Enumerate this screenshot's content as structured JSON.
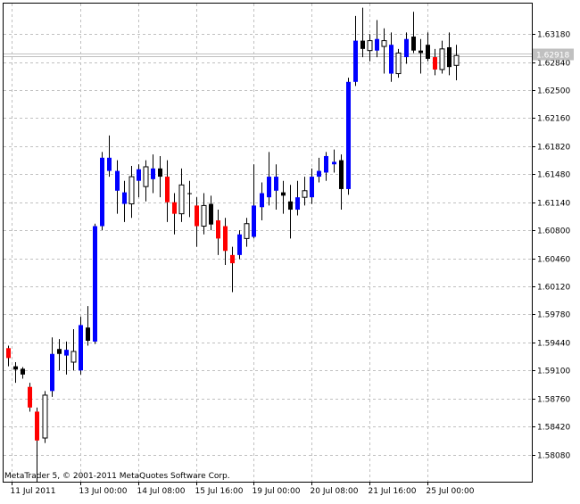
{
  "chart_data": {
    "type": "candlestick",
    "copyright": "MetaTrader 5, © 2001-2011 MetaQuotes Software Corp.",
    "current_price_label": "1.62918",
    "current_price": 1.62918,
    "ylim": [
      1.5775,
      1.6355
    ],
    "y_ticks": [
      "1.63180",
      "1.62840",
      "1.62500",
      "1.62160",
      "1.61820",
      "1.61480",
      "1.61140",
      "1.60800",
      "1.60460",
      "1.60120",
      "1.59780",
      "1.59440",
      "1.59100",
      "1.58760",
      "1.58420",
      "1.58080"
    ],
    "x_ticks": [
      {
        "label": "11 Jul 2011",
        "index": 0.5
      },
      {
        "label": "13 Jul 00:00",
        "index": 10
      },
      {
        "label": "14 Jul 08:00",
        "index": 18
      },
      {
        "label": "15 Jul 16:00",
        "index": 26
      },
      {
        "label": "19 Jul 00:00",
        "index": 34
      },
      {
        "label": "20 Jul 08:00",
        "index": 42
      },
      {
        "label": "21 Jul 16:00",
        "index": 50
      },
      {
        "label": "25 Jul 00:00",
        "index": 58
      }
    ],
    "colors": {
      "bull": "#0000ff",
      "bear": "#ff0000",
      "doji_bull": "#ffffff",
      "doji_bear": "#000000",
      "wick": "#000000",
      "grid": "#c0c0c0",
      "price_line": "#c0c0c0",
      "price_tag": "#c0c0c0"
    },
    "candles": [
      {
        "o": 1.5937,
        "h": 1.594,
        "l": 1.5915,
        "c": 1.5925,
        "s": "bear"
      },
      {
        "o": 1.5915,
        "h": 1.592,
        "l": 1.5895,
        "c": 1.5911,
        "s": "dbear"
      },
      {
        "o": 1.5912,
        "h": 1.5914,
        "l": 1.59,
        "c": 1.5905,
        "s": "dbear"
      },
      {
        "o": 1.589,
        "h": 1.5895,
        "l": 1.586,
        "c": 1.5865,
        "s": "bear"
      },
      {
        "o": 1.586,
        "h": 1.5865,
        "l": 1.5775,
        "c": 1.5825,
        "s": "bear"
      },
      {
        "o": 1.5828,
        "h": 1.5885,
        "l": 1.5822,
        "c": 1.588,
        "s": "dbull"
      },
      {
        "o": 1.5885,
        "h": 1.595,
        "l": 1.5878,
        "c": 1.593,
        "s": "bull"
      },
      {
        "o": 1.593,
        "h": 1.5948,
        "l": 1.591,
        "c": 1.5936,
        "s": "dbear"
      },
      {
        "o": 1.5928,
        "h": 1.5945,
        "l": 1.5905,
        "c": 1.5935,
        "s": "bull"
      },
      {
        "o": 1.592,
        "h": 1.596,
        "l": 1.591,
        "c": 1.5933,
        "s": "dbull"
      },
      {
        "o": 1.591,
        "h": 1.5975,
        "l": 1.5905,
        "c": 1.5965,
        "s": "bull"
      },
      {
        "o": 1.5962,
        "h": 1.5988,
        "l": 1.594,
        "c": 1.5946,
        "s": "dbear"
      },
      {
        "o": 1.5945,
        "h": 1.6088,
        "l": 1.5942,
        "c": 1.6085,
        "s": "bull"
      },
      {
        "o": 1.6085,
        "h": 1.6175,
        "l": 1.608,
        "c": 1.6168,
        "s": "bull"
      },
      {
        "o": 1.6168,
        "h": 1.6195,
        "l": 1.6145,
        "c": 1.6152,
        "s": "bull"
      },
      {
        "o": 1.6152,
        "h": 1.6165,
        "l": 1.61,
        "c": 1.6128,
        "s": "bull"
      },
      {
        "o": 1.6126,
        "h": 1.614,
        "l": 1.609,
        "c": 1.6112,
        "s": "bull"
      },
      {
        "o": 1.6112,
        "h": 1.6158,
        "l": 1.6095,
        "c": 1.6145,
        "s": "dbull"
      },
      {
        "o": 1.614,
        "h": 1.616,
        "l": 1.612,
        "c": 1.6154,
        "s": "bull"
      },
      {
        "o": 1.6133,
        "h": 1.6165,
        "l": 1.6115,
        "c": 1.6157,
        "s": "dbull"
      },
      {
        "o": 1.6155,
        "h": 1.6172,
        "l": 1.6125,
        "c": 1.6142,
        "s": "bull"
      },
      {
        "o": 1.6155,
        "h": 1.617,
        "l": 1.612,
        "c": 1.6145,
        "s": "dbear"
      },
      {
        "o": 1.6145,
        "h": 1.6165,
        "l": 1.609,
        "c": 1.6114,
        "s": "bear"
      },
      {
        "o": 1.6114,
        "h": 1.6125,
        "l": 1.6075,
        "c": 1.61,
        "s": "bear"
      },
      {
        "o": 1.61,
        "h": 1.6155,
        "l": 1.609,
        "c": 1.6135,
        "s": "dbull"
      },
      {
        "o": 1.6125,
        "h": 1.614,
        "l": 1.6096,
        "c": 1.6125,
        "s": "dbear"
      },
      {
        "o": 1.611,
        "h": 1.612,
        "l": 1.606,
        "c": 1.6085,
        "s": "bear"
      },
      {
        "o": 1.611,
        "h": 1.6125,
        "l": 1.6075,
        "c": 1.6085,
        "s": "dbull"
      },
      {
        "o": 1.6112,
        "h": 1.6122,
        "l": 1.608,
        "c": 1.6087,
        "s": "dbear"
      },
      {
        "o": 1.6092,
        "h": 1.6105,
        "l": 1.605,
        "c": 1.607,
        "s": "bear"
      },
      {
        "o": 1.6085,
        "h": 1.6095,
        "l": 1.6038,
        "c": 1.6055,
        "s": "bear"
      },
      {
        "o": 1.605,
        "h": 1.606,
        "l": 1.6005,
        "c": 1.604,
        "s": "bear"
      },
      {
        "o": 1.605,
        "h": 1.608,
        "l": 1.6045,
        "c": 1.6075,
        "s": "bull"
      },
      {
        "o": 1.607,
        "h": 1.6095,
        "l": 1.606,
        "c": 1.6088,
        "s": "dbull"
      },
      {
        "o": 1.6072,
        "h": 1.616,
        "l": 1.607,
        "c": 1.611,
        "s": "bull"
      },
      {
        "o": 1.6108,
        "h": 1.6138,
        "l": 1.6092,
        "c": 1.6125,
        "s": "bull"
      },
      {
        "o": 1.612,
        "h": 1.6175,
        "l": 1.611,
        "c": 1.6145,
        "s": "bull"
      },
      {
        "o": 1.6145,
        "h": 1.616,
        "l": 1.6105,
        "c": 1.6128,
        "s": "bull"
      },
      {
        "o": 1.6122,
        "h": 1.614,
        "l": 1.61,
        "c": 1.6126,
        "s": "dbear"
      },
      {
        "o": 1.6115,
        "h": 1.6135,
        "l": 1.607,
        "c": 1.6105,
        "s": "dbear"
      },
      {
        "o": 1.6105,
        "h": 1.614,
        "l": 1.6098,
        "c": 1.612,
        "s": "bull"
      },
      {
        "o": 1.612,
        "h": 1.6145,
        "l": 1.611,
        "c": 1.6128,
        "s": "dbull"
      },
      {
        "o": 1.612,
        "h": 1.6155,
        "l": 1.6112,
        "c": 1.6145,
        "s": "bull"
      },
      {
        "o": 1.6145,
        "h": 1.6168,
        "l": 1.6138,
        "c": 1.6152,
        "s": "bull"
      },
      {
        "o": 1.615,
        "h": 1.6175,
        "l": 1.614,
        "c": 1.617,
        "s": "bull"
      },
      {
        "o": 1.616,
        "h": 1.6178,
        "l": 1.615,
        "c": 1.6163,
        "s": "bull"
      },
      {
        "o": 1.6165,
        "h": 1.6172,
        "l": 1.6105,
        "c": 1.613,
        "s": "dbear"
      },
      {
        "o": 1.613,
        "h": 1.6265,
        "l": 1.6123,
        "c": 1.626,
        "s": "bull"
      },
      {
        "o": 1.626,
        "h": 1.634,
        "l": 1.6255,
        "c": 1.631,
        "s": "bull"
      },
      {
        "o": 1.631,
        "h": 1.635,
        "l": 1.629,
        "c": 1.63,
        "s": "dbear"
      },
      {
        "o": 1.6298,
        "h": 1.6318,
        "l": 1.6285,
        "c": 1.631,
        "s": "dbull"
      },
      {
        "o": 1.6312,
        "h": 1.6335,
        "l": 1.629,
        "c": 1.6298,
        "s": "bull"
      },
      {
        "o": 1.631,
        "h": 1.6325,
        "l": 1.627,
        "c": 1.6303,
        "s": "dbull"
      },
      {
        "o": 1.6305,
        "h": 1.632,
        "l": 1.626,
        "c": 1.627,
        "s": "bull"
      },
      {
        "o": 1.627,
        "h": 1.63,
        "l": 1.6265,
        "c": 1.6295,
        "s": "dbull"
      },
      {
        "o": 1.629,
        "h": 1.632,
        "l": 1.6282,
        "c": 1.6312,
        "s": "bull"
      },
      {
        "o": 1.6315,
        "h": 1.6345,
        "l": 1.6295,
        "c": 1.6298,
        "s": "dbear"
      },
      {
        "o": 1.6298,
        "h": 1.6312,
        "l": 1.627,
        "c": 1.6295,
        "s": "dbear"
      },
      {
        "o": 1.6305,
        "h": 1.632,
        "l": 1.6285,
        "c": 1.6288,
        "s": "dbear"
      },
      {
        "o": 1.629,
        "h": 1.63,
        "l": 1.6268,
        "c": 1.6275,
        "s": "bear"
      },
      {
        "o": 1.6275,
        "h": 1.631,
        "l": 1.627,
        "c": 1.63,
        "s": "dbull"
      },
      {
        "o": 1.6302,
        "h": 1.632,
        "l": 1.6268,
        "c": 1.6278,
        "s": "dbear"
      },
      {
        "o": 1.628,
        "h": 1.6305,
        "l": 1.6262,
        "c": 1.6292,
        "s": "dbull"
      }
    ]
  }
}
